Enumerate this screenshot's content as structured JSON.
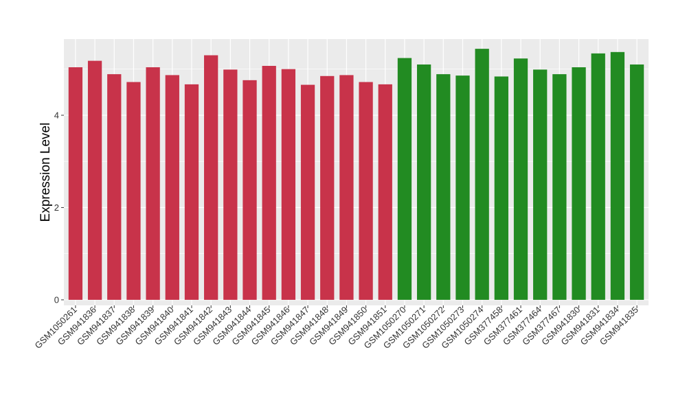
{
  "chart_data": {
    "type": "bar",
    "title": "",
    "xlabel": "",
    "ylabel": "Expression Level",
    "ylim": [
      -0.12,
      5.65
    ],
    "yticks": [
      0,
      2,
      4
    ],
    "grid": true,
    "legend": "none",
    "panel_color": "#ebebeb",
    "grid_color": "#ffffff",
    "series": [
      {
        "color": "#c8334a",
        "categories": [
          "GSM1050261",
          "GSM941836",
          "GSM941837",
          "GSM941838",
          "GSM941839",
          "GSM941840",
          "GSM941841",
          "GSM941842",
          "GSM941843",
          "GSM941844",
          "GSM941845",
          "GSM941846",
          "GSM941847",
          "GSM941848",
          "GSM941849",
          "GSM941850",
          "GSM941851"
        ],
        "values": [
          5.04,
          5.18,
          4.89,
          4.72,
          5.04,
          4.87,
          4.67,
          5.3,
          4.99,
          4.76,
          5.07,
          5.0,
          4.66,
          4.85,
          4.87,
          4.72,
          4.67
        ]
      },
      {
        "color": "#228b22",
        "categories": [
          "GSM1050270",
          "GSM1050271",
          "GSM1050272",
          "GSM1050273",
          "GSM1050274",
          "GSM377458",
          "GSM377461",
          "GSM377464",
          "GSM377467",
          "GSM941830",
          "GSM941831",
          "GSM941834",
          "GSM941835"
        ],
        "values": [
          5.24,
          5.1,
          4.89,
          4.86,
          5.44,
          4.84,
          5.23,
          4.99,
          4.89,
          5.04,
          5.34,
          5.37,
          5.1
        ]
      }
    ]
  }
}
